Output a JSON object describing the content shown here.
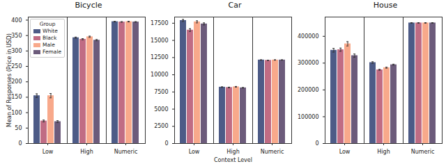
{
  "chart_data": [
    {
      "type": "bar",
      "title": "Bicycle",
      "ylabel": "Mean of Responses (Price in USD)",
      "categories": [
        "Low",
        "High",
        "Numeric"
      ],
      "series": [
        {
          "name": "White",
          "color": "#4d5b87",
          "values": [
            155,
            343,
            395
          ],
          "errors": [
            6,
            2,
            1
          ]
        },
        {
          "name": "Black",
          "color": "#c06c84",
          "values": [
            73,
            338,
            394
          ],
          "errors": [
            3,
            2,
            1
          ]
        },
        {
          "name": "Male",
          "color": "#f8a98b",
          "values": [
            155,
            346,
            395
          ],
          "errors": [
            7,
            2,
            1
          ]
        },
        {
          "name": "Female",
          "color": "#6c5b7b",
          "values": [
            71,
            335,
            394
          ],
          "errors": [
            3,
            2,
            1
          ]
        }
      ],
      "ylim": [
        0,
        410
      ],
      "yticks": [
        0,
        50,
        100,
        150,
        200,
        250,
        300,
        350,
        400
      ],
      "grid": false,
      "legend": "upper left",
      "legend_title": "Group"
    },
    {
      "type": "bar",
      "title": "Car",
      "xlabel": "Context Level",
      "categories": [
        "Low",
        "High",
        "Numeric"
      ],
      "series": [
        {
          "name": "White",
          "color": "#4d5b87",
          "values": [
            17900,
            8200,
            12150
          ],
          "errors": [
            150,
            50,
            30
          ]
        },
        {
          "name": "Black",
          "color": "#c06c84",
          "values": [
            16500,
            8150,
            12100
          ],
          "errors": [
            200,
            50,
            30
          ]
        },
        {
          "name": "Male",
          "color": "#f8a98b",
          "values": [
            17700,
            8250,
            12150
          ],
          "errors": [
            150,
            50,
            30
          ]
        },
        {
          "name": "Female",
          "color": "#6c5b7b",
          "values": [
            17400,
            8100,
            12150
          ],
          "errors": [
            150,
            50,
            30
          ]
        }
      ],
      "ylim": [
        0,
        18400
      ],
      "yticks": [
        0,
        2500,
        5000,
        7500,
        10000,
        12500,
        15000,
        17500
      ],
      "grid": false
    },
    {
      "type": "bar",
      "title": "House",
      "categories": [
        "Low",
        "High",
        "Numeric"
      ],
      "series": [
        {
          "name": "White",
          "color": "#4d5b87",
          "values": [
            348000,
            302000,
            450000
          ],
          "errors": [
            7000,
            3000,
            1000
          ]
        },
        {
          "name": "Black",
          "color": "#c06c84",
          "values": [
            350000,
            275000,
            450000
          ],
          "errors": [
            6000,
            2000,
            1000
          ]
        },
        {
          "name": "Male",
          "color": "#f8a98b",
          "values": [
            372000,
            283000,
            450000
          ],
          "errors": [
            8000,
            2000,
            1000
          ]
        },
        {
          "name": "Female",
          "color": "#6c5b7b",
          "values": [
            328000,
            294000,
            450000
          ],
          "errors": [
            6000,
            2000,
            1000
          ]
        }
      ],
      "ylim": [
        0,
        472000
      ],
      "yticks": [
        0,
        100000,
        200000,
        300000,
        400000
      ],
      "grid": false
    }
  ]
}
